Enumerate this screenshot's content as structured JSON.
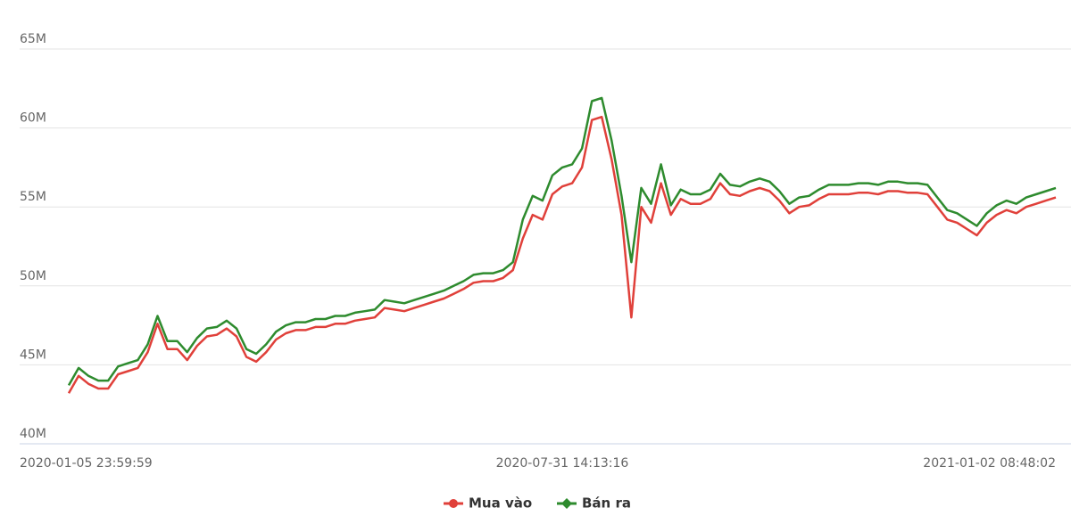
{
  "chart_data": {
    "type": "line",
    "categories": [
      "2020-01-05 23:59:59",
      null,
      null,
      null,
      null,
      null,
      null,
      null,
      null,
      null,
      null,
      null,
      null,
      null,
      null,
      null,
      null,
      null,
      null,
      null,
      null,
      null,
      null,
      null,
      null,
      null,
      null,
      null,
      null,
      null,
      null,
      null,
      null,
      null,
      null,
      null,
      null,
      null,
      null,
      null,
      null,
      null,
      null,
      null,
      null,
      null,
      null,
      null,
      null,
      null,
      "2020-07-31 14:13:16",
      null,
      null,
      null,
      null,
      null,
      null,
      null,
      null,
      null,
      null,
      null,
      null,
      null,
      null,
      null,
      null,
      null,
      null,
      null,
      null,
      null,
      null,
      null,
      null,
      null,
      null,
      null,
      null,
      null,
      null,
      null,
      null,
      null,
      null,
      null,
      null,
      null,
      null,
      null,
      null,
      null,
      null,
      null,
      null,
      null,
      null,
      null,
      null,
      null,
      "2021-01-02 08:48:02"
    ],
    "series": [
      {
        "name": "Mua vào",
        "color": "#e0403a",
        "values": [
          43.2,
          44.3,
          43.8,
          43.5,
          43.5,
          44.4,
          44.6,
          44.8,
          45.8,
          47.6,
          46.0,
          46.0,
          45.3,
          46.2,
          46.8,
          46.9,
          47.3,
          46.8,
          45.5,
          45.2,
          45.8,
          46.6,
          47.0,
          47.2,
          47.2,
          47.4,
          47.4,
          47.6,
          47.6,
          47.8,
          47.9,
          48.0,
          48.6,
          48.5,
          48.4,
          48.6,
          48.8,
          49.0,
          49.2,
          49.5,
          49.8,
          50.2,
          50.3,
          50.3,
          50.5,
          51.0,
          53.0,
          54.5,
          54.2,
          55.8,
          56.3,
          56.5,
          57.5,
          60.5,
          60.7,
          58.0,
          54.5,
          48.0,
          55.0,
          54.0,
          56.5,
          54.5,
          55.5,
          55.2,
          55.2,
          55.5,
          56.5,
          55.8,
          55.7,
          56.0,
          56.2,
          56.0,
          55.4,
          54.6,
          55.0,
          55.1,
          55.5,
          55.8,
          55.8,
          55.8,
          55.9,
          55.9,
          55.8,
          56.0,
          56.0,
          55.9,
          55.9,
          55.8,
          55.0,
          54.2,
          54.0,
          53.6,
          53.2,
          54.0,
          54.5,
          54.8,
          54.6,
          55.0,
          55.2,
          55.4,
          55.6
        ]
      },
      {
        "name": "Bán ra",
        "color": "#2e8b2e",
        "values": [
          43.7,
          44.8,
          44.3,
          44.0,
          44.0,
          44.9,
          45.1,
          45.3,
          46.3,
          48.1,
          46.5,
          46.5,
          45.8,
          46.7,
          47.3,
          47.4,
          47.8,
          47.3,
          46.0,
          45.7,
          46.3,
          47.1,
          47.5,
          47.7,
          47.7,
          47.9,
          47.9,
          48.1,
          48.1,
          48.3,
          48.4,
          48.5,
          49.1,
          49.0,
          48.9,
          49.1,
          49.3,
          49.5,
          49.7,
          50.0,
          50.3,
          50.7,
          50.8,
          50.8,
          51.0,
          51.5,
          54.2,
          55.7,
          55.4,
          57.0,
          57.5,
          57.7,
          58.7,
          61.7,
          61.9,
          59.2,
          55.7,
          51.5,
          56.2,
          55.2,
          57.7,
          55.1,
          56.1,
          55.8,
          55.8,
          56.1,
          57.1,
          56.4,
          56.3,
          56.6,
          56.8,
          56.6,
          56.0,
          55.2,
          55.6,
          55.7,
          56.1,
          56.4,
          56.4,
          56.4,
          56.5,
          56.5,
          56.4,
          56.6,
          56.6,
          56.5,
          56.5,
          56.4,
          55.6,
          54.8,
          54.6,
          54.2,
          53.8,
          54.6,
          55.1,
          55.4,
          55.2,
          55.6,
          55.8,
          56.0,
          56.2
        ]
      }
    ],
    "ylim": [
      40,
      65
    ],
    "yticks": [
      {
        "value": 40,
        "label": "40M"
      },
      {
        "value": 45,
        "label": "45M"
      },
      {
        "value": 50,
        "label": "50M"
      },
      {
        "value": 55,
        "label": "55M"
      },
      {
        "value": 60,
        "label": "60M"
      },
      {
        "value": 65,
        "label": "65M"
      }
    ],
    "grid": true,
    "legend": "bottom"
  }
}
